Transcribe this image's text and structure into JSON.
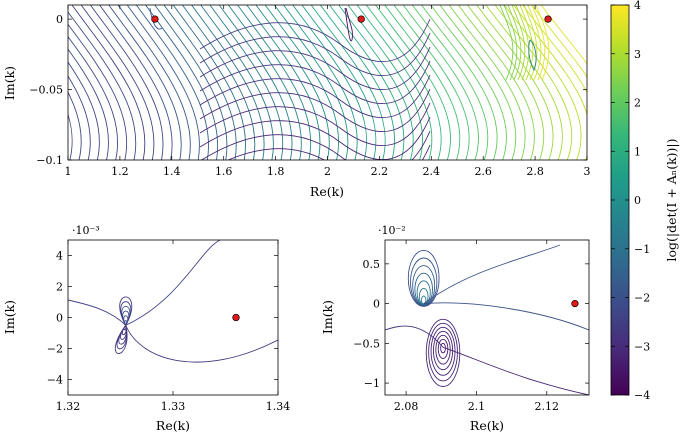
{
  "chart_data": [
    {
      "id": "top",
      "type": "contour",
      "xlabel": "Re(k)",
      "ylabel": "Im(k)",
      "xlim": [
        1,
        3
      ],
      "ylim": [
        -0.1,
        0.01
      ],
      "xticks": [
        1,
        1.2,
        1.4,
        1.6,
        1.8,
        2,
        2.2,
        2.4,
        2.6,
        2.8,
        3
      ],
      "xtick_labels": [
        "1",
        "1.2",
        "1.4",
        "1.6",
        "1.8",
        "2",
        "2.2",
        "2.4",
        "2.6",
        "2.8",
        "3"
      ],
      "yticks": [
        0,
        -0.05,
        -0.1
      ],
      "ytick_labels": [
        "0",
        "−0.05",
        "−0.1"
      ],
      "scale_label": "",
      "markers": [
        {
          "x": 1.335,
          "y": 0.0
        },
        {
          "x": 2.13,
          "y": 0.0
        },
        {
          "x": 2.85,
          "y": 0.0
        }
      ]
    },
    {
      "id": "bottom-left",
      "type": "contour",
      "xlabel": "Re(k)",
      "ylabel": "Im(k)",
      "xlim": [
        1.32,
        1.34
      ],
      "ylim": [
        -5,
        5
      ],
      "xticks": [
        1.32,
        1.33,
        1.34
      ],
      "xtick_labels": [
        "1.32",
        "1.33",
        "1.34"
      ],
      "yticks": [
        4,
        2,
        0,
        -2,
        -4
      ],
      "ytick_labels": [
        "4",
        "2",
        "0",
        "−2",
        "−4"
      ],
      "scale_label": "·10⁻³",
      "markers": [
        {
          "x": 1.336,
          "y": 0.0
        }
      ]
    },
    {
      "id": "bottom-right",
      "type": "contour",
      "xlabel": "Re(k)",
      "ylabel": "Im(k)",
      "xlim": [
        2.074,
        2.132
      ],
      "ylim": [
        -1.15,
        0.8
      ],
      "xticks": [
        2.08,
        2.1,
        2.12
      ],
      "xtick_labels": [
        "2.08",
        "2.1",
        "2.12"
      ],
      "yticks": [
        0.5,
        0,
        -0.5,
        -1
      ],
      "ytick_labels": [
        "0.5",
        "0",
        "−0.5",
        "−1"
      ],
      "scale_label": "·10⁻²",
      "markers": [
        {
          "x": 2.128,
          "y": 0.0
        }
      ]
    }
  ],
  "colorbar": {
    "label": "log(|det(I + Aₙ(k))|)",
    "min": -4,
    "max": 4,
    "ticks": [
      4,
      3,
      2,
      1,
      0,
      -1,
      -2,
      -3,
      -4
    ],
    "tick_labels": [
      "4",
      "3",
      "2",
      "1",
      "0",
      "−1",
      "−2",
      "−3",
      "−4"
    ],
    "colormap": "viridis",
    "stops": [
      "#440154",
      "#482878",
      "#3e4989",
      "#31688e",
      "#26828e",
      "#1f9e89",
      "#35b779",
      "#6ece58",
      "#b5de2b",
      "#fde725"
    ]
  },
  "colors": {
    "marker_fill": "#e31a1c",
    "marker_stroke": "#000000"
  }
}
